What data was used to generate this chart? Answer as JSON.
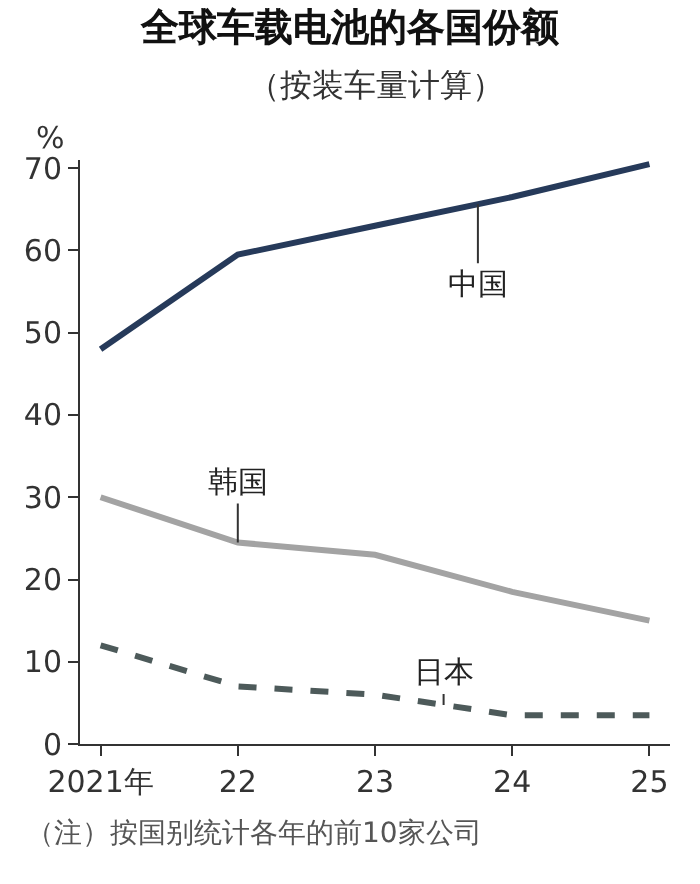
{
  "chart_data": {
    "type": "line",
    "title": "全球车载电池的各国份额",
    "subtitle": "（按装车量计算）",
    "ylabel": "%",
    "categories": [
      "2021年",
      "22",
      "23",
      "24",
      "25"
    ],
    "series": [
      {
        "name": "中国",
        "color": "#263a5a",
        "values": [
          48,
          59.5,
          63,
          66.5,
          70.5
        ]
      },
      {
        "name": "韩国",
        "color": "#a3a3a3",
        "values": [
          30,
          24.5,
          23,
          18.5,
          15
        ]
      },
      {
        "name": "日本",
        "color": "#4d5a5a",
        "values": [
          12,
          7,
          6,
          3.5,
          3.5
        ],
        "line_style": "dashed"
      }
    ],
    "ylim": [
      0,
      71
    ],
    "yticks": [
      0,
      10,
      20,
      30,
      40,
      50,
      60,
      70
    ],
    "legend": false,
    "marker": "none",
    "annotations": [
      "（注）按国别统计各年的前10家公司"
    ]
  }
}
